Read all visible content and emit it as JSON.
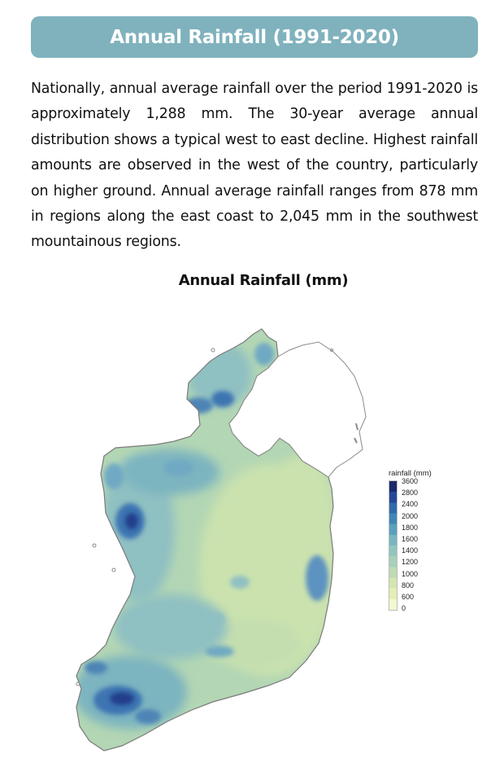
{
  "header": {
    "title": "Annual Rainfall (1991-2020)"
  },
  "intro_text": "Nationally, annual average rainfall over the period 1991-2020 is approximately 1,288 mm. The 30-year average annual distribution shows a typical west to east decline. Highest rainfall amounts are observed in the west of the country, particularly on higher ground. Annual average rainfall ranges from 878 mm in regions along the east coast to 2,045 mm in the southwest mountainous regions.",
  "map": {
    "title": "Annual Rainfall (mm)",
    "legend": {
      "title": "rainfall (mm)",
      "labels": [
        "3600",
        "2800",
        "2400",
        "2000",
        "1800",
        "1600",
        "1400",
        "1200",
        "1000",
        "800",
        "600",
        "0"
      ],
      "colors": [
        "#1b2a6b",
        "#24479a",
        "#2f6aa9",
        "#3f86b4",
        "#58a0bc",
        "#78b6bf",
        "#93c5bf",
        "#a8d0ba",
        "#bfdbb3",
        "#d3e6b1",
        "#e4efb6",
        "#f3f8cf"
      ]
    },
    "colors": {
      "land_base": "#b3d6b4",
      "east_dry": "#cbe2ae",
      "wet": "#6fa9c3",
      "very_wet": "#3e74b2",
      "extreme": "#213d8a",
      "coast_line": "#7a7a7a",
      "ni_fill": "#ffffff"
    }
  }
}
